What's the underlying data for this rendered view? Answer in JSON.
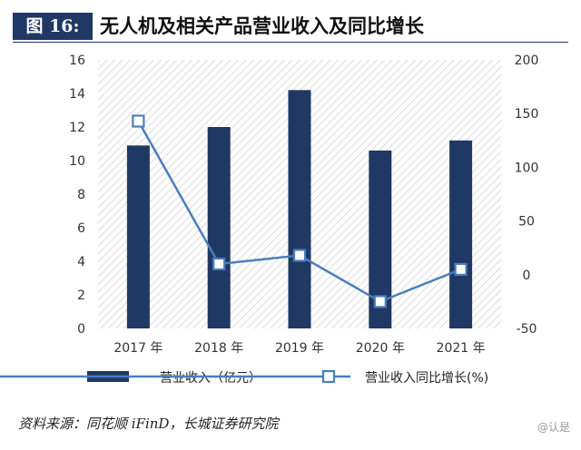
{
  "header": {
    "figure_label": "图 16:",
    "title": "无人机及相关产品营业收入及同比增长"
  },
  "chart_data": {
    "type": "bar",
    "categories": [
      "2017 年",
      "2018 年",
      "2019 年",
      "2020 年",
      "2021 年"
    ],
    "series": [
      {
        "name": "营业收入（亿元）",
        "kind": "bar",
        "axis": "left",
        "values": [
          10.9,
          12.0,
          14.2,
          10.6,
          11.2
        ]
      },
      {
        "name": "营业收入同比增长(%)",
        "kind": "line",
        "axis": "right",
        "values": [
          143,
          10,
          18,
          -25,
          5
        ]
      }
    ],
    "y_left": {
      "min": 0,
      "max": 16,
      "ticks": [
        0,
        2,
        4,
        6,
        8,
        10,
        12,
        14,
        16
      ]
    },
    "y_right": {
      "min": -50,
      "max": 200,
      "ticks": [
        -50,
        0,
        50,
        100,
        150,
        200
      ]
    },
    "legend_position": "bottom",
    "grid": false,
    "plot_background": "diagonal-hatch",
    "colors": {
      "bar": "#1f3864",
      "line": "#4a7ebb",
      "marker_fill": "#ffffff"
    }
  },
  "footer": {
    "source": "资料来源：同花顺 iFinD，长城证券研究院",
    "watermark": "@认是"
  }
}
